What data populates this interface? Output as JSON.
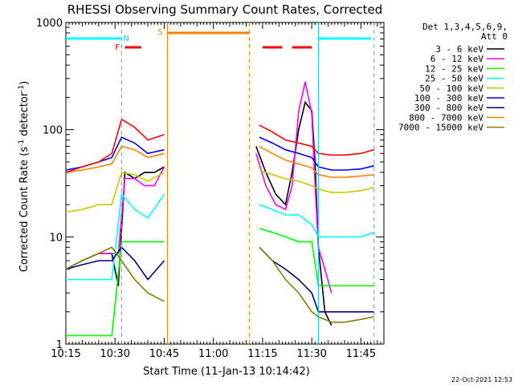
{
  "chart_data": {
    "type": "line",
    "title": "RHESSI Observing Summary Count Rates, Corrected",
    "xlabel": "Start Time (11-Jan-13 10:14:42)",
    "ylabel": "Corrected Count Rate (s⁻¹ detector⁻¹)",
    "ylabel_main": "Corrected Count Rate (s",
    "ylabel_exp1": "-1",
    "ylabel_mid": " detector",
    "ylabel_exp2": "-1",
    "ylabel_close": ")",
    "date_stamp": "22-Oct-2021 12:53",
    "yscale": "log",
    "xlim": [
      "10:15",
      "11:52"
    ],
    "ylim": [
      1,
      1000
    ],
    "x_ticks": [
      "10:15",
      "10:30",
      "10:45",
      "11:00",
      "11:15",
      "11:30",
      "11:45"
    ],
    "y_ticks": [
      "1",
      "10",
      "100",
      "1000"
    ],
    "legend_header": [
      "Det 1,3,4,5,6,9,",
      "Att 0"
    ],
    "markers": [
      {
        "label": "F",
        "color": "#ff0000"
      },
      {
        "label": "N",
        "color": "#00c8ff"
      },
      {
        "label": "S",
        "color": "#ff8000"
      }
    ],
    "series": [
      {
        "name": "3 - 6 keV",
        "color": "#000000",
        "x": [
          "10:15",
          "10:20",
          "10:25",
          "10:29",
          "10:31",
          "10:33",
          "10:36",
          "10:39",
          "10:42",
          "10:45",
          "10:46",
          "11:11",
          "11:13",
          "11:16",
          "11:19",
          "11:22",
          "11:24",
          "11:26",
          "11:28",
          "11:30",
          "11:31",
          "11:32",
          "11:34",
          "11:36"
        ],
        "y": [
          5,
          6,
          7,
          7,
          3.5,
          40,
          35,
          40,
          40,
          45,
          null,
          null,
          70,
          40,
          25,
          20,
          40,
          100,
          180,
          150,
          50,
          8,
          2,
          1.5
        ]
      },
      {
        "name": "6 - 12 keV",
        "color": "#ff00ff",
        "x": [
          "10:15",
          "10:20",
          "10:25",
          "10:29",
          "10:31",
          "10:33",
          "10:36",
          "10:39",
          "10:42",
          "10:45",
          "10:46",
          "11:11",
          "11:13",
          "11:16",
          "11:19",
          "11:22",
          "11:24",
          "11:26",
          "11:28",
          "11:30",
          "11:31",
          "11:32",
          "11:34",
          "11:36"
        ],
        "y": [
          5,
          6,
          7,
          7,
          7,
          35,
          35,
          30,
          30,
          45,
          null,
          null,
          60,
          30,
          20,
          18,
          30,
          150,
          280,
          140,
          30,
          8,
          5,
          3
        ]
      },
      {
        "name": "12 - 25 keV",
        "color": "#00ff00",
        "x": [
          "10:15",
          "10:20",
          "10:25",
          "10:29",
          "10:32",
          "10:36",
          "10:40",
          "10:45",
          "10:46",
          "11:11",
          "11:14",
          "11:18",
          "11:22",
          "11:26",
          "11:30",
          "11:32",
          "11:36",
          "11:40",
          "11:45",
          "11:49"
        ],
        "y": [
          1.2,
          1.2,
          1.2,
          1.2,
          9,
          9,
          9,
          9,
          null,
          null,
          12,
          11,
          10,
          9,
          9,
          3.5,
          3.5,
          3.5,
          3.5,
          3.5
        ]
      },
      {
        "name": "25 - 50 keV",
        "color": "#00ffff",
        "x": [
          "10:15",
          "10:20",
          "10:25",
          "10:29",
          "10:32",
          "10:36",
          "10:40",
          "10:45",
          "10:46",
          "11:11",
          "11:14",
          "11:18",
          "11:22",
          "11:26",
          "11:30",
          "11:32",
          "11:36",
          "11:40",
          "11:45",
          "11:49"
        ],
        "y": [
          4,
          4,
          4,
          4,
          25,
          18,
          15,
          25,
          null,
          null,
          20,
          18,
          16,
          16,
          13,
          10,
          10,
          10,
          10,
          11
        ]
      },
      {
        "name": "50 - 100 keV",
        "color": "#c8c800",
        "x": [
          "10:15",
          "10:20",
          "10:25",
          "10:29",
          "10:32",
          "10:36",
          "10:40",
          "10:45",
          "10:46",
          "11:11",
          "11:14",
          "11:18",
          "11:22",
          "11:26",
          "11:30",
          "11:32",
          "11:36",
          "11:40",
          "11:45",
          "11:49"
        ],
        "y": [
          17,
          18,
          20,
          20,
          40,
          38,
          33,
          40,
          null,
          null,
          42,
          38,
          35,
          33,
          30,
          28,
          26,
          26,
          27,
          29
        ]
      },
      {
        "name": "100 - 300 keV",
        "color": "#0000ff",
        "x": [
          "10:15",
          "10:20",
          "10:25",
          "10:29",
          "10:32",
          "10:36",
          "10:40",
          "10:45",
          "10:46",
          "11:11",
          "11:14",
          "11:18",
          "11:22",
          "11:26",
          "11:30",
          "11:32",
          "11:36",
          "11:40",
          "11:45",
          "11:49"
        ],
        "y": [
          42,
          45,
          50,
          55,
          85,
          75,
          60,
          65,
          null,
          null,
          85,
          75,
          65,
          60,
          55,
          45,
          42,
          42,
          43,
          46
        ]
      },
      {
        "name": "300 - 800 keV",
        "color": "#000080",
        "x": [
          "10:15",
          "10:20",
          "10:25",
          "10:29",
          "10:32",
          "10:36",
          "10:40",
          "10:45",
          "10:46",
          "11:11",
          "11:14",
          "11:18",
          "11:22",
          "11:26",
          "11:30",
          "11:32",
          "11:36",
          "11:40",
          "11:45",
          "11:49"
        ],
        "y": [
          5,
          5.5,
          6,
          6,
          8,
          6,
          4,
          6,
          null,
          null,
          8,
          6,
          5,
          4,
          3,
          2,
          2,
          2,
          2,
          2
        ]
      },
      {
        "name": "800 - 7000 keV",
        "color": "#ff8000",
        "x": [
          "10:15",
          "10:20",
          "10:25",
          "10:29",
          "10:32",
          "10:36",
          "10:40",
          "10:45",
          "10:46",
          "11:11",
          "11:14",
          "11:18",
          "11:22",
          "11:26",
          "11:30",
          "11:32",
          "11:36",
          "11:40",
          "11:45",
          "11:49"
        ],
        "y": [
          40,
          42,
          45,
          48,
          70,
          65,
          55,
          60,
          null,
          null,
          70,
          60,
          52,
          48,
          44,
          38,
          36,
          36,
          37,
          38
        ]
      },
      {
        "name": "7000 - 15000 keV",
        "color": "#808000",
        "x": [
          "10:15",
          "10:20",
          "10:25",
          "10:29",
          "10:32",
          "10:36",
          "10:40",
          "10:45",
          "10:46",
          "11:11",
          "11:14",
          "11:18",
          "11:22",
          "11:26",
          "11:30",
          "11:32",
          "11:36",
          "11:40",
          "11:45",
          "11:49"
        ],
        "y": [
          5,
          6,
          7,
          8,
          6,
          4,
          3,
          2.5,
          null,
          null,
          8,
          6,
          4,
          3,
          2,
          1.8,
          1.6,
          1.6,
          1.7,
          1.8
        ]
      },
      {
        "name": "",
        "color": "#ff0000",
        "x": [
          "10:15",
          "10:20",
          "10:25",
          "10:29",
          "10:32",
          "10:36",
          "10:40",
          "10:45",
          "10:46",
          "11:11",
          "11:14",
          "11:18",
          "11:22",
          "11:26",
          "11:30",
          "11:32",
          "11:36",
          "11:40",
          "11:45",
          "11:49"
        ],
        "y": [
          40,
          45,
          50,
          60,
          125,
          105,
          80,
          90,
          null,
          null,
          110,
          95,
          80,
          75,
          70,
          60,
          58,
          58,
          60,
          65
        ]
      }
    ]
  }
}
